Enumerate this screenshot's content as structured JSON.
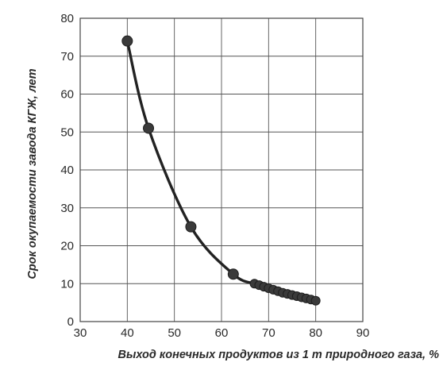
{
  "chart_data": {
    "type": "line",
    "title": "",
    "xlabel": "Выход конечных продуктов из 1 т природного газа, %",
    "ylabel": "Срок окупаемости завода КГЖ, лет",
    "xlim": [
      30,
      90
    ],
    "ylim": [
      0,
      80
    ],
    "x_ticks": [
      30,
      40,
      50,
      60,
      70,
      80,
      90
    ],
    "y_ticks": [
      0,
      10,
      20,
      30,
      40,
      50,
      60,
      70,
      80
    ],
    "x_tick_labels": [
      "30",
      "40",
      "50",
      "60",
      "70",
      "80",
      "90"
    ],
    "y_tick_labels": [
      "0",
      "10",
      "20",
      "30",
      "40",
      "50",
      "60",
      "70",
      "80"
    ],
    "grid": true,
    "legend": "none",
    "series": [
      {
        "x": [
          40,
          44.5,
          53.5,
          62.5,
          67,
          68,
          69,
          70,
          71,
          72,
          73,
          74,
          75,
          76,
          77,
          78,
          79,
          80
        ],
        "y": [
          74,
          51,
          25,
          12.5,
          10,
          9.6,
          9.2,
          8.8,
          8.4,
          8.0,
          7.6,
          7.3,
          7.0,
          6.7,
          6.4,
          6.1,
          5.8,
          5.5
        ]
      }
    ],
    "colors": {
      "line": "#222222",
      "marker": "#3a3a3a",
      "grid": "#555555",
      "text": "#2a2a2a"
    }
  }
}
